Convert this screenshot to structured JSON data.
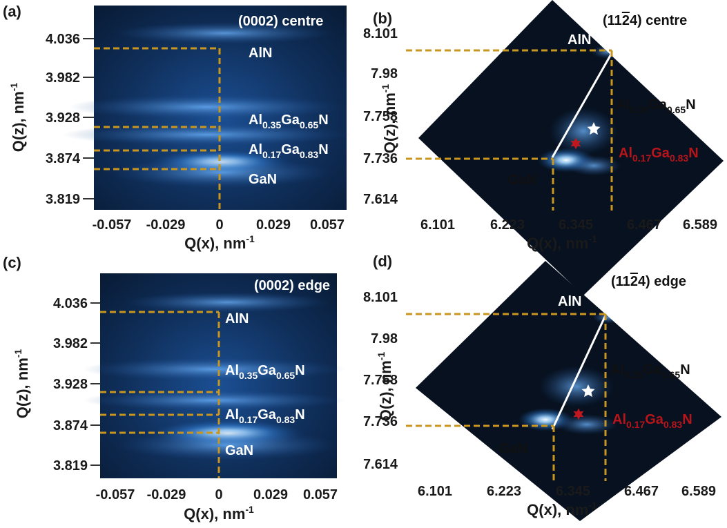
{
  "colors": {
    "guide": "#C9961F",
    "white_star": "#FFFFFF",
    "red_star": "#C0181E",
    "red_label": "#B8151B",
    "map_glow": "#5FB4FF",
    "map_background": "#07111F"
  },
  "chart_data": [
    {
      "panel": "(a)",
      "type": "heatmap",
      "title": "(0002) centre",
      "xlabel": "Q(x), nm",
      "xlabel_sup": "-1",
      "ylabel": "Q(z), nm",
      "ylabel_sup": "-1",
      "x_ticks": [
        "-0.057",
        "-0.029",
        "0",
        "0.029",
        "0.057"
      ],
      "y_ticks": [
        "4.036",
        "3.982",
        "3.928",
        "3.874",
        "3.819"
      ],
      "peaks": [
        {
          "name": "AlN",
          "qx": 0.0,
          "qz": 4.02
        },
        {
          "name": "Al0.35Ga0.65N",
          "qx": 0.0,
          "qz": 3.914
        },
        {
          "name": "Al0.17Ga0.83N",
          "qx": 0.0,
          "qz": 3.881
        },
        {
          "name": "GaN",
          "qx": 0.0,
          "qz": 3.856
        }
      ],
      "labels": [
        {
          "base": "Al",
          "s1": "0.35",
          "mid": "Ga",
          "s2": "0.65",
          "end": "N"
        },
        {
          "base": "Al",
          "s1": "0.17",
          "mid": "Ga",
          "s2": "0.83",
          "end": "N"
        }
      ]
    },
    {
      "panel": "(b)",
      "type": "heatmap",
      "title_prefix": "(11",
      "title_bar": "2",
      "title_suffix": "4) centre",
      "xlabel": "Q(x), nm",
      "xlabel_sup": "-1",
      "ylabel": "Q(z), nm",
      "ylabel_sup": "-1",
      "x_ticks": [
        "6.101",
        "6.223",
        "6.345",
        "6.467",
        "6.589"
      ],
      "y_ticks": [
        "8.101",
        "7.98",
        "7.758",
        "7.736",
        "7.614"
      ],
      "peaks": [
        {
          "name": "AlN",
          "qx": 6.39,
          "qz": 8.03
        },
        {
          "name": "GaN",
          "qx": 6.27,
          "qz": 7.73
        }
      ],
      "markers": [
        {
          "shape": "star",
          "color": "white"
        },
        {
          "shape": "star",
          "color": "red"
        }
      ],
      "labels": [
        {
          "base": "Al",
          "s1": "0.35",
          "mid": "Ga",
          "s2": "0.65",
          "end": "N"
        },
        {
          "base": "Al",
          "s1": "0.17",
          "mid": "Ga",
          "s2": "0.83",
          "end": "N"
        }
      ]
    },
    {
      "panel": "(c)",
      "type": "heatmap",
      "title": "(0002) edge",
      "xlabel": "Q(x), nm",
      "xlabel_sup": "-1",
      "ylabel": "Q(z), nm",
      "ylabel_sup": "-1",
      "x_ticks": [
        "-0.057",
        "-0.029",
        "0",
        "0.029",
        "0.057"
      ],
      "y_ticks": [
        "4.036",
        "3.982",
        "3.928",
        "3.874",
        "3.819"
      ],
      "peaks": [
        {
          "name": "AlN",
          "qx": 0.0,
          "qz": 4.019
        },
        {
          "name": "Al0.35Ga0.65N",
          "qx": 0.0,
          "qz": 3.912
        },
        {
          "name": "Al0.17Ga0.83N",
          "qx": 0.0,
          "qz": 3.884
        },
        {
          "name": "GaN",
          "qx": 0.0,
          "qz": 3.86
        }
      ],
      "labels": [
        {
          "base": "Al",
          "s1": "0.35",
          "mid": "Ga",
          "s2": "0.65",
          "end": "N"
        },
        {
          "base": "Al",
          "s1": "0.17",
          "mid": "Ga",
          "s2": "0.83",
          "end": "N"
        }
      ]
    },
    {
      "panel": "(d)",
      "type": "heatmap",
      "title_prefix": "(11",
      "title_bar": "2",
      "title_suffix": "4) edge",
      "xlabel": "Q(x), nm",
      "xlabel_sup": "-1",
      "ylabel": "Q(z), nm",
      "ylabel_sup": "-1",
      "x_ticks": [
        "6.101",
        "6.223",
        "6.345",
        "6.467",
        "6.589"
      ],
      "y_ticks": [
        "8.101",
        "7.98",
        "7.758",
        "7.736",
        "7.614"
      ],
      "peaks": [
        {
          "name": "AlN",
          "qx": 6.38,
          "qz": 8.03
        },
        {
          "name": "GaN",
          "qx": 6.27,
          "qz": 7.73
        }
      ],
      "markers": [
        {
          "shape": "star",
          "color": "white"
        },
        {
          "shape": "star",
          "color": "red"
        }
      ],
      "labels": [
        {
          "base": "Al",
          "s1": "0.35",
          "mid": "Ga",
          "s2": "0.65",
          "end": "N"
        },
        {
          "base": "Al",
          "s1": "0.17",
          "mid": "Ga",
          "s2": "0.83",
          "end": "N"
        }
      ]
    }
  ]
}
